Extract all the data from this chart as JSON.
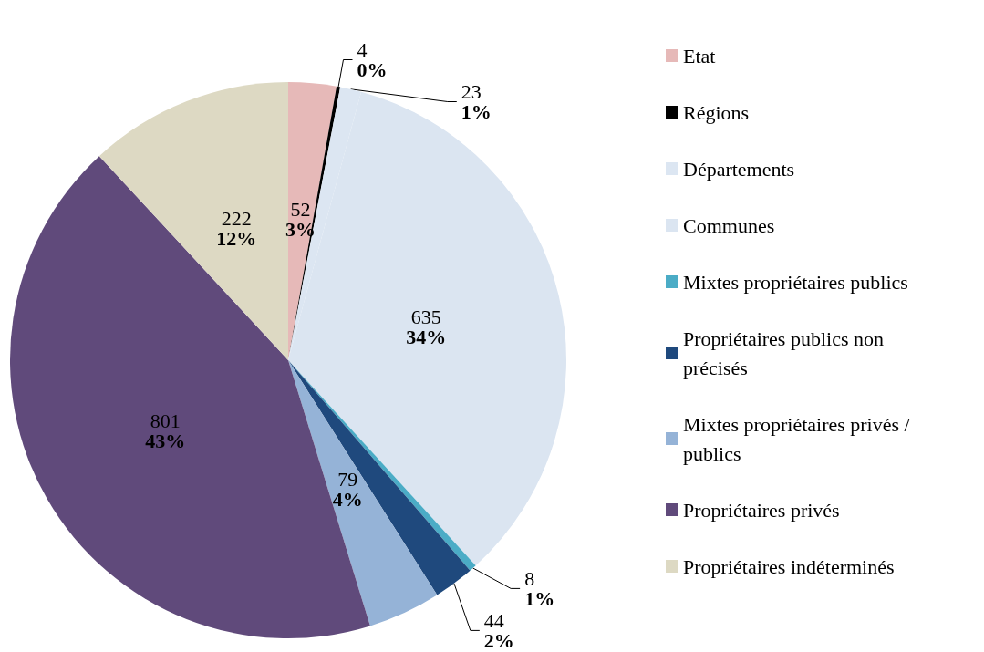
{
  "chart_data": {
    "type": "pie",
    "categories": [
      "Etat",
      "Régions",
      "Départements",
      "Communes",
      "Mixtes propriétaires publics",
      "Propriétaires publics non précisés",
      "Mixtes propriétaires privés / publics",
      "Propriétaires privés",
      "Propriétaires indéterminés"
    ],
    "values": [
      52,
      4,
      23,
      635,
      8,
      44,
      79,
      801,
      222
    ],
    "colors": [
      "#e6b9b8",
      "#000000",
      "#dce6f2",
      "#dbe5f1",
      "#4bacc6",
      "#1f497d",
      "#95b3d7",
      "#604a7b",
      "#ddd9c3"
    ],
    "value_labels": [
      "52\n3%",
      "4\n0%",
      "23\n1%",
      "635\n34%",
      "8\n1%",
      "44\n2%",
      "79\n4%",
      "801\n43%",
      "222\n12%"
    ],
    "legend": "right"
  }
}
